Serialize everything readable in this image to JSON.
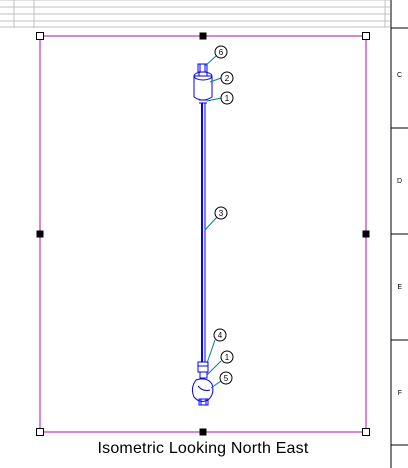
{
  "view": {
    "caption": "Isometric Looking North East"
  },
  "zone_letters": [
    "C",
    "D",
    "E",
    "F"
  ],
  "balloons": [
    {
      "label": "6"
    },
    {
      "label": "2"
    },
    {
      "label": "1"
    },
    {
      "label": "3"
    },
    {
      "label": "4"
    },
    {
      "label": "1"
    },
    {
      "label": "5"
    }
  ],
  "colors": {
    "viewport_frame": "#c000c0",
    "pipe": "#0000ff",
    "leader": "#008080",
    "grid": "#c0c0c0"
  },
  "icons": {
    "corner_handles": "square-handle-outline",
    "midpoint_handles": "square-handle-filled"
  }
}
